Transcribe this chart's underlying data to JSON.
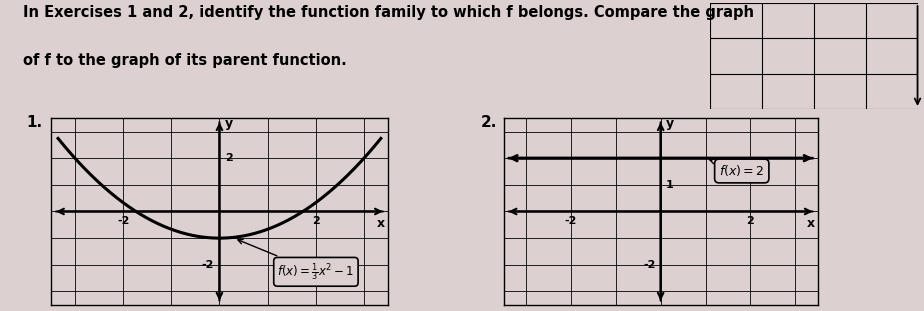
{
  "bg_color": "#ddd0d0",
  "header_line1": "In Exercises 1 and 2, identify the function family to which f belongs. Compare the graph",
  "header_line2": "of f to the graph of its parent function.",
  "label1": "1.",
  "label2": "2.",
  "graph1": {
    "xlim": [
      -3.5,
      3.5
    ],
    "ylim": [
      -3.5,
      3.5
    ],
    "func_label": "$f(x) = \\frac{1}{3}x^2 - 1$"
  },
  "graph2": {
    "xlim": [
      -3.5,
      3.5
    ],
    "ylim": [
      -3.5,
      3.5
    ],
    "func_label": "$f(x) = 2$"
  },
  "top_right_grid": {
    "cols": 4,
    "rows": 3
  }
}
